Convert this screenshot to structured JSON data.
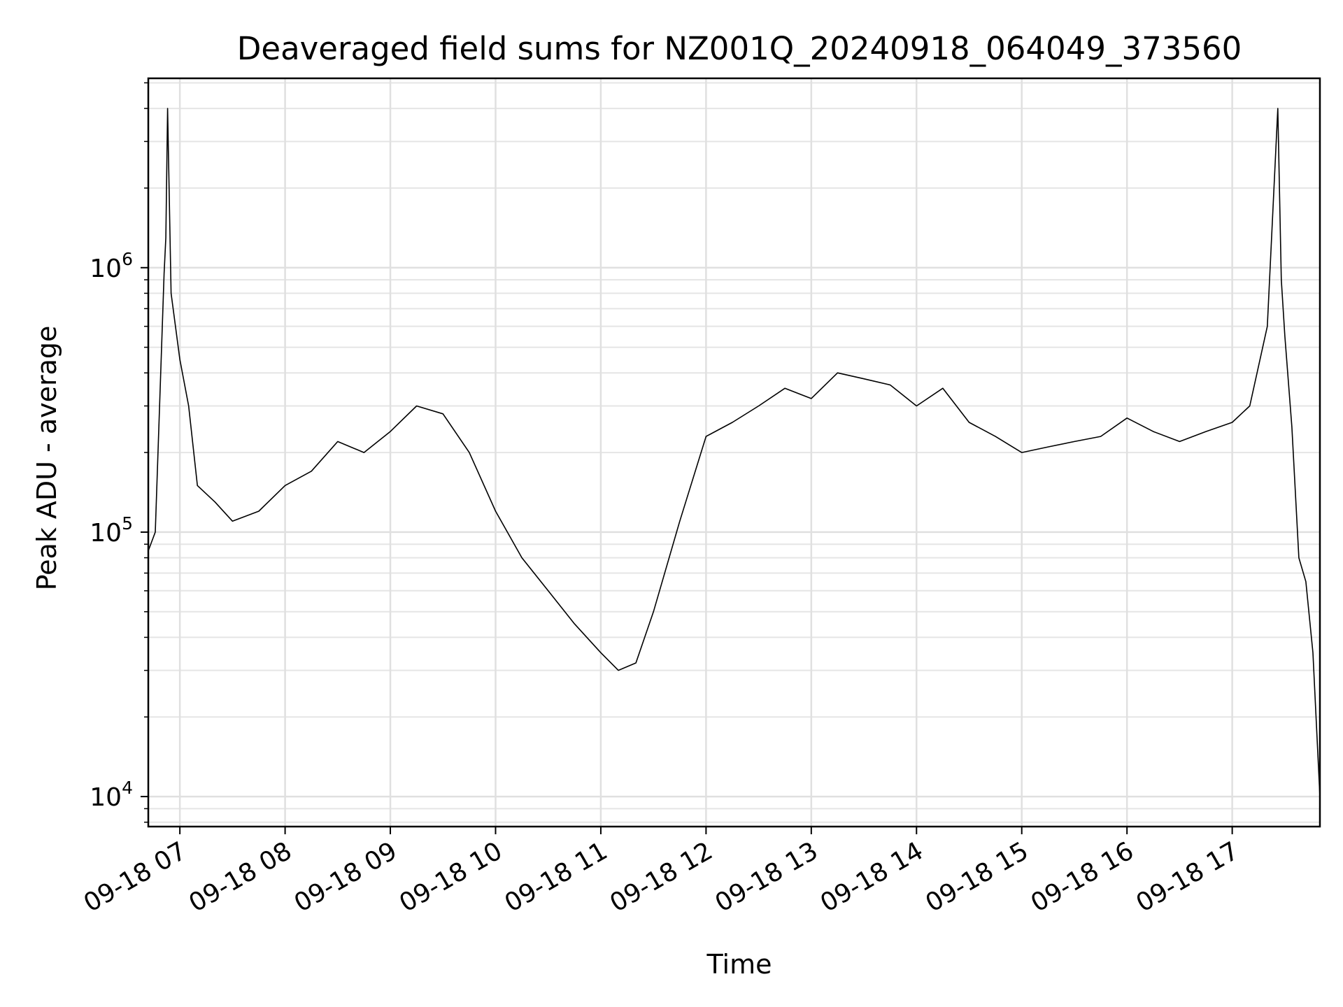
{
  "chart_data": {
    "type": "line",
    "title": "Deaveraged field sums for NZ001Q_20240918_064049_373560",
    "xlabel": "Time",
    "ylabel": "Peak ADU - average",
    "yscale": "log",
    "grid": true,
    "legend": "none",
    "xlim": [
      "09-18 06:42",
      "09-18 17:50"
    ],
    "ylim": [
      7700,
      5200000
    ],
    "x_ticks": [
      "09-18 07",
      "09-18 08",
      "09-18 09",
      "09-18 10",
      "09-18 11",
      "09-18 12",
      "09-18 13",
      "09-18 14",
      "09-18 15",
      "09-18 16",
      "09-18 17"
    ],
    "y_ticks": [
      {
        "base": "10",
        "exp": "4",
        "value": 10000
      },
      {
        "base": "10",
        "exp": "5",
        "value": 100000
      },
      {
        "base": "10",
        "exp": "6",
        "value": 1000000
      }
    ],
    "series": [
      {
        "color": "#000000",
        "x": [
          "09-18 06:42",
          "09-18 06:46",
          "09-18 06:51",
          "09-18 06:52",
          "09-18 06:53",
          "09-18 06:55",
          "09-18 07:00",
          "09-18 07:05",
          "09-18 07:10",
          "09-18 07:20",
          "09-18 07:30",
          "09-18 07:45",
          "09-18 08:00",
          "09-18 08:15",
          "09-18 08:30",
          "09-18 08:45",
          "09-18 09:00",
          "09-18 09:15",
          "09-18 09:30",
          "09-18 09:45",
          "09-18 10:00",
          "09-18 10:15",
          "09-18 10:30",
          "09-18 10:45",
          "09-18 11:00",
          "09-18 11:10",
          "09-18 11:20",
          "09-18 11:30",
          "09-18 11:45",
          "09-18 12:00",
          "09-18 12:15",
          "09-18 12:30",
          "09-18 12:45",
          "09-18 13:00",
          "09-18 13:15",
          "09-18 13:30",
          "09-18 13:45",
          "09-18 14:00",
          "09-18 14:15",
          "09-18 14:30",
          "09-18 14:45",
          "09-18 15:00",
          "09-18 15:15",
          "09-18 15:30",
          "09-18 15:45",
          "09-18 16:00",
          "09-18 16:15",
          "09-18 16:30",
          "09-18 16:45",
          "09-18 17:00",
          "09-18 17:10",
          "09-18 17:20",
          "09-18 17:26",
          "09-18 17:28",
          "09-18 17:30",
          "09-18 17:34",
          "09-18 17:38",
          "09-18 17:42",
          "09-18 17:46",
          "09-18 17:50"
        ],
        "y": [
          85000,
          100000,
          950000,
          1300000,
          4000000,
          800000,
          450000,
          300000,
          150000,
          130000,
          110000,
          120000,
          150000,
          170000,
          220000,
          200000,
          240000,
          300000,
          280000,
          200000,
          120000,
          80000,
          60000,
          45000,
          35000,
          30000,
          32000,
          50000,
          110000,
          230000,
          260000,
          300000,
          350000,
          320000,
          400000,
          380000,
          360000,
          300000,
          350000,
          260000,
          230000,
          200000,
          210000,
          220000,
          230000,
          270000,
          240000,
          220000,
          240000,
          260000,
          300000,
          600000,
          4000000,
          900000,
          550000,
          250000,
          80000,
          65000,
          35000,
          10000
        ]
      }
    ]
  }
}
